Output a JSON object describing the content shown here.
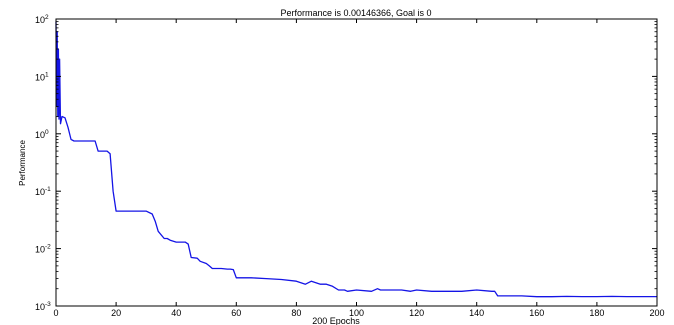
{
  "chart_data": {
    "type": "line",
    "title": "Performance is 0.00146366, Goal is 0",
    "xlabel": "200 Epochs",
    "ylabel": "Performance",
    "xlim": [
      0,
      200
    ],
    "ylim": [
      0.001,
      100
    ],
    "yscale": "log",
    "grid": false,
    "x_ticks": [
      0,
      20,
      40,
      60,
      80,
      100,
      120,
      140,
      160,
      180,
      200
    ],
    "x_tick_labels": [
      "0",
      "20",
      "40",
      "60",
      "80",
      "100",
      "120",
      "140",
      "160",
      "180",
      "200"
    ],
    "y_ticks": [
      0.001,
      0.01,
      0.1,
      1,
      10,
      100
    ],
    "y_tick_labels": [
      {
        "base": "10",
        "exp": "-3"
      },
      {
        "base": "10",
        "exp": "-2"
      },
      {
        "base": "10",
        "exp": "-1"
      },
      {
        "base": "10",
        "exp": "0"
      },
      {
        "base": "10",
        "exp": "1"
      },
      {
        "base": "10",
        "exp": "2"
      }
    ],
    "colors": {
      "line": "#1414e6",
      "axes_bg": "#ffffff",
      "figure_bg": "#ffffff"
    },
    "series": [
      {
        "x": [
          0,
          0.2,
          0.4,
          0.6,
          0.8,
          1,
          1.2,
          1.5,
          2,
          3,
          4,
          5,
          6,
          10,
          13,
          14,
          17,
          18,
          19,
          20,
          25,
          30,
          32,
          33,
          34,
          36,
          37,
          38,
          40,
          43,
          44,
          45,
          47,
          48,
          50,
          51,
          52,
          55,
          57,
          58,
          59,
          60,
          65,
          70,
          75,
          80,
          82,
          83,
          85,
          86,
          88,
          90,
          92,
          94,
          96,
          97,
          100,
          105,
          107,
          108,
          110,
          115,
          118,
          120,
          125,
          130,
          135,
          140,
          145,
          146,
          147,
          150,
          155,
          160,
          165,
          170,
          175,
          180,
          185,
          190,
          195,
          200
        ],
        "y": [
          90,
          3,
          60,
          2,
          30,
          1.8,
          20,
          1.5,
          2,
          1.9,
          1.3,
          0.8,
          0.75,
          0.75,
          0.75,
          0.5,
          0.5,
          0.45,
          0.1,
          0.045,
          0.045,
          0.045,
          0.04,
          0.03,
          0.02,
          0.015,
          0.015,
          0.014,
          0.013,
          0.013,
          0.012,
          0.007,
          0.0068,
          0.006,
          0.0055,
          0.005,
          0.0045,
          0.0045,
          0.0044,
          0.0044,
          0.0043,
          0.0031,
          0.0031,
          0.003,
          0.0029,
          0.0027,
          0.0025,
          0.0024,
          0.0027,
          0.0026,
          0.0024,
          0.0024,
          0.0022,
          0.0019,
          0.0019,
          0.0018,
          0.0019,
          0.0018,
          0.002,
          0.0019,
          0.0019,
          0.0019,
          0.0018,
          0.0019,
          0.0018,
          0.0018,
          0.0018,
          0.0019,
          0.0018,
          0.0018,
          0.0015,
          0.0015,
          0.0015,
          0.00145,
          0.00145,
          0.00147,
          0.00146,
          0.00146,
          0.00147,
          0.00146,
          0.00146,
          0.00146
        ]
      }
    ]
  }
}
